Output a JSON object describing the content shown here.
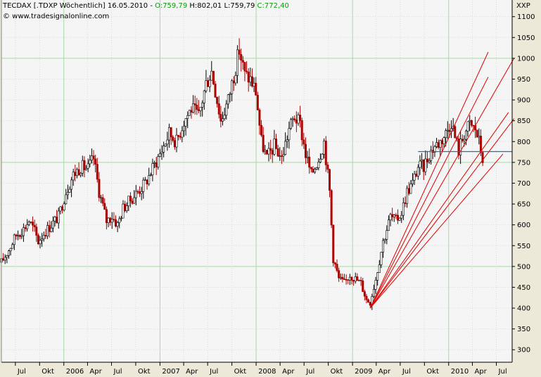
{
  "header": {
    "instrument": "TECDAX [.TDXP  Wöchentlich] 16.05.2010 - ",
    "open": "O:759,79",
    "high_sep": " H:802,01 ",
    "low": "L:759,79 ",
    "close": "C:772,40",
    "copyright": "© www.tradesignalonline.com",
    "corner_label": "XXP"
  },
  "colors": {
    "background": "#f5f5f5",
    "grid": "#dcdcdc",
    "major_grid": "#a9d7a9",
    "candle_up": "#000000",
    "candle_down": "#aa0000",
    "fan_lines": "#e00000",
    "horizontal_line": "#1e73b4"
  },
  "chart_data": {
    "type": "candlestick",
    "frequency": "weekly",
    "y_ticks": [
      300,
      350,
      400,
      450,
      500,
      550,
      600,
      650,
      700,
      750,
      800,
      850,
      900,
      950,
      1000,
      1050,
      1100
    ],
    "y_major": [
      500,
      750,
      1000
    ],
    "ylim": [
      270,
      1140
    ],
    "x_start": "2005-05-09",
    "x_end": "2010-08-30",
    "x_ticks": [
      {
        "label": "Jul",
        "date": "2005-07-01"
      },
      {
        "label": "Okt",
        "date": "2005-10-01"
      },
      {
        "label": "2006",
        "date": "2006-01-01",
        "major": true
      },
      {
        "label": "Apr",
        "date": "2006-04-01"
      },
      {
        "label": "Jul",
        "date": "2006-07-01"
      },
      {
        "label": "Okt",
        "date": "2006-10-01"
      },
      {
        "label": "2007",
        "date": "2007-01-01",
        "major": true
      },
      {
        "label": "Apr",
        "date": "2007-04-01"
      },
      {
        "label": "Jul",
        "date": "2007-07-01"
      },
      {
        "label": "Okt",
        "date": "2007-10-01"
      },
      {
        "label": "2008",
        "date": "2008-01-01",
        "major": true
      },
      {
        "label": "Apr",
        "date": "2008-04-01"
      },
      {
        "label": "Jul",
        "date": "2008-07-01"
      },
      {
        "label": "Okt",
        "date": "2008-10-01"
      },
      {
        "label": "2009",
        "date": "2009-01-01",
        "major": true
      },
      {
        "label": "Apr",
        "date": "2009-04-01"
      },
      {
        "label": "Jul",
        "date": "2009-07-01"
      },
      {
        "label": "Okt",
        "date": "2009-10-01"
      },
      {
        "label": "2010",
        "date": "2010-01-01",
        "major": true
      },
      {
        "label": "Apr",
        "date": "2010-04-01"
      },
      {
        "label": "Jul",
        "date": "2010-07-01"
      }
    ],
    "close_path": [
      [
        "2005-05-09",
        510
      ],
      [
        "2005-06-06",
        540
      ],
      [
        "2005-07-04",
        575
      ],
      [
        "2005-08-01",
        590
      ],
      [
        "2005-08-22",
        610
      ],
      [
        "2005-09-12",
        585
      ],
      [
        "2005-09-26",
        560
      ],
      [
        "2005-10-17",
        580
      ],
      [
        "2005-11-14",
        600
      ],
      [
        "2005-12-12",
        620
      ],
      [
        "2006-01-09",
        680
      ],
      [
        "2006-02-06",
        720
      ],
      [
        "2006-03-06",
        740
      ],
      [
        "2006-04-03",
        735
      ],
      [
        "2006-04-24",
        760
      ],
      [
        "2006-05-15",
        680
      ],
      [
        "2006-06-12",
        610
      ],
      [
        "2006-07-03",
        620
      ],
      [
        "2006-07-24",
        600
      ],
      [
        "2006-08-14",
        640
      ],
      [
        "2006-09-11",
        660
      ],
      [
        "2006-10-09",
        680
      ],
      [
        "2006-11-06",
        700
      ],
      [
        "2006-12-04",
        735
      ],
      [
        "2007-01-08",
        780
      ],
      [
        "2007-02-05",
        820
      ],
      [
        "2007-03-05",
        800
      ],
      [
        "2007-04-02",
        850
      ],
      [
        "2007-04-30",
        880
      ],
      [
        "2007-05-28",
        860
      ],
      [
        "2007-06-25",
        940
      ],
      [
        "2007-07-16",
        970
      ],
      [
        "2007-08-06",
        900
      ],
      [
        "2007-08-20",
        850
      ],
      [
        "2007-09-17",
        900
      ],
      [
        "2007-10-08",
        960
      ],
      [
        "2007-10-29",
        1020
      ],
      [
        "2007-11-19",
        960
      ],
      [
        "2007-12-10",
        950
      ],
      [
        "2007-12-31",
        920
      ],
      [
        "2008-01-21",
        800
      ],
      [
        "2008-02-11",
        760
      ],
      [
        "2008-03-10",
        790
      ],
      [
        "2008-04-07",
        760
      ],
      [
        "2008-05-05",
        830
      ],
      [
        "2008-05-26",
        860
      ],
      [
        "2008-06-16",
        840
      ],
      [
        "2008-07-07",
        770
      ],
      [
        "2008-07-28",
        720
      ],
      [
        "2008-08-25",
        760
      ],
      [
        "2008-09-15",
        800
      ],
      [
        "2008-10-06",
        680
      ],
      [
        "2008-10-20",
        520
      ],
      [
        "2008-11-10",
        470
      ],
      [
        "2008-12-01",
        460
      ],
      [
        "2008-12-22",
        480
      ],
      [
        "2009-01-12",
        470
      ],
      [
        "2009-02-02",
        460
      ],
      [
        "2009-02-23",
        420
      ],
      [
        "2009-03-09",
        415
      ],
      [
        "2009-03-30",
        470
      ],
      [
        "2009-04-27",
        560
      ],
      [
        "2009-05-25",
        620
      ],
      [
        "2009-06-15",
        610
      ],
      [
        "2009-07-06",
        630
      ],
      [
        "2009-07-27",
        680
      ],
      [
        "2009-08-17",
        700
      ],
      [
        "2009-09-07",
        740
      ],
      [
        "2009-09-28",
        740
      ],
      [
        "2009-10-19",
        770
      ],
      [
        "2009-11-09",
        790
      ],
      [
        "2009-11-30",
        800
      ],
      [
        "2009-12-21",
        820
      ],
      [
        "2010-01-11",
        850
      ],
      [
        "2010-01-25",
        810
      ],
      [
        "2010-02-08",
        780
      ],
      [
        "2010-03-01",
        820
      ],
      [
        "2010-03-22",
        840
      ],
      [
        "2010-04-12",
        830
      ],
      [
        "2010-04-26",
        800
      ],
      [
        "2010-05-10",
        760
      ],
      [
        "2010-05-16",
        772.4
      ]
    ],
    "fan_lines": {
      "origin": {
        "date": "2009-03-09",
        "value": 400
      },
      "ends": [
        {
          "date": "2010-05-31",
          "value": 1015
        },
        {
          "date": "2010-05-31",
          "value": 955
        },
        {
          "date": "2010-09-06",
          "value": 1000
        },
        {
          "date": "2010-08-16",
          "value": 870
        },
        {
          "date": "2010-09-06",
          "value": 855
        },
        {
          "date": "2010-07-26",
          "value": 770
        }
      ]
    },
    "horizontal_line": {
      "value": 776,
      "from": "2009-09-07",
      "to": "2010-08-30"
    }
  }
}
